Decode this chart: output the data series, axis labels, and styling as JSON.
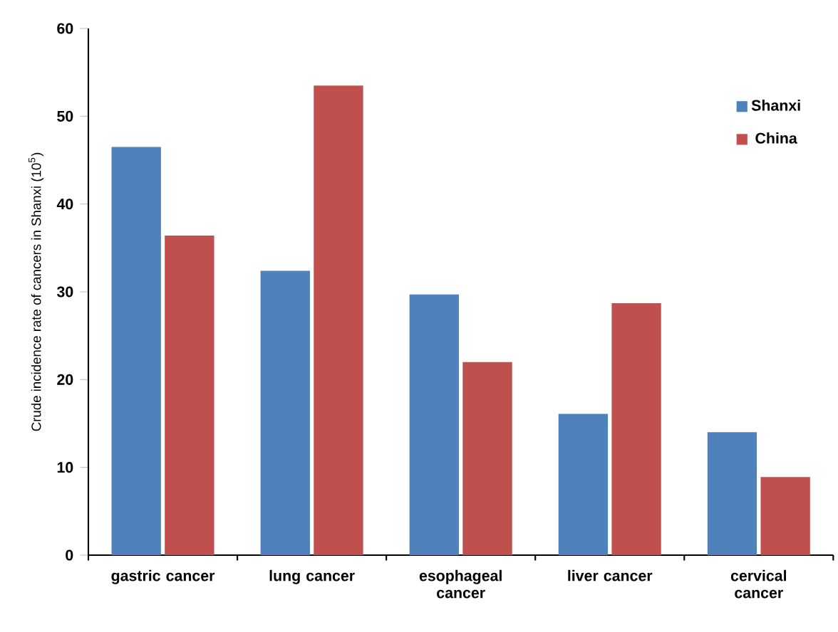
{
  "chart_data": {
    "type": "bar",
    "ylabel": "Crude incidence rate of cancers in Shanxi (10$^{5}$)",
    "categories": [
      "gastric cancer",
      "lung cancer",
      "esophageal cancer",
      "liver cancer",
      "cervical cancer"
    ],
    "series": [
      {
        "name": "Shanxi",
        "color": "#4f81bd",
        "values": [
          46.5,
          32.4,
          29.7,
          16.1,
          14.0
        ]
      },
      {
        "name": "China",
        "color": "#c0504d",
        "values": [
          36.4,
          53.5,
          22.0,
          28.7,
          8.9
        ]
      }
    ],
    "ylim": [
      0,
      60
    ],
    "yticks": [
      0,
      10,
      20,
      30,
      40,
      50,
      60
    ],
    "legend": "top right"
  }
}
